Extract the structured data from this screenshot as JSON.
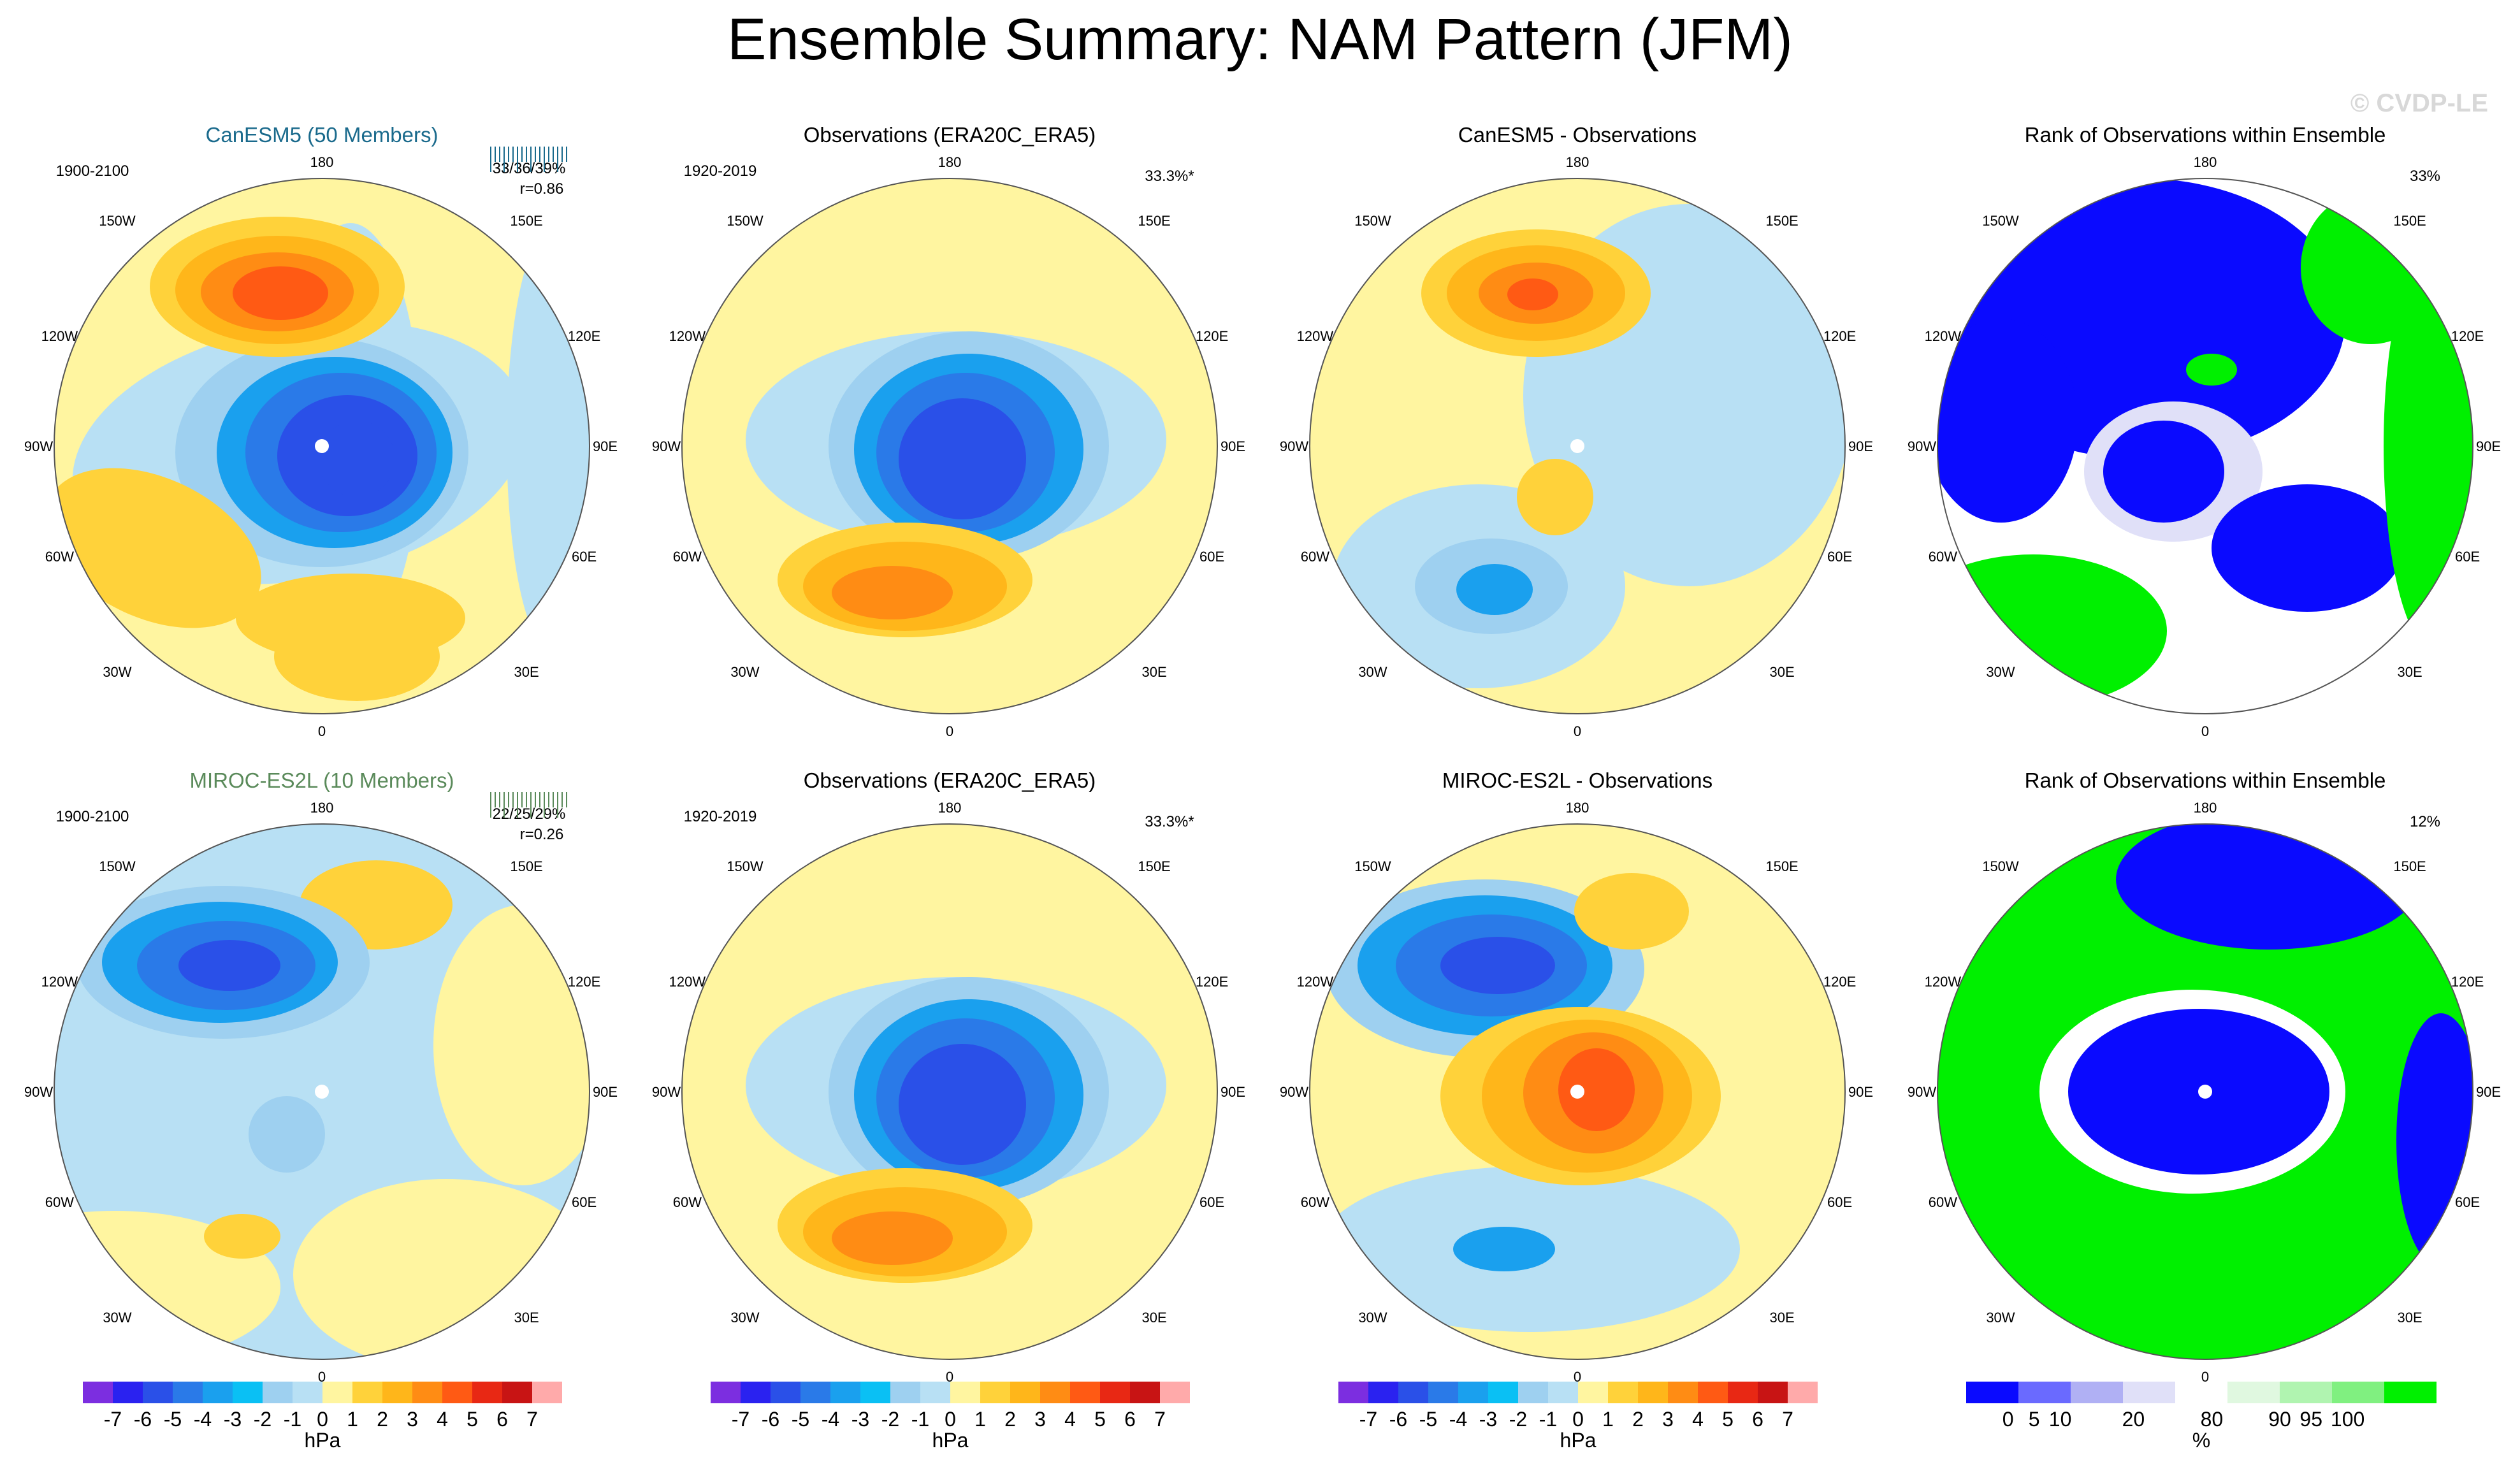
{
  "title": "Ensemble Summary: NAM Pattern (JFM)",
  "watermark": "© CVDP-LE",
  "colors": {
    "model1": "#1a6a8c",
    "model2": "#5a8a5a",
    "map_palette": [
      "#7c2ee0",
      "#2a22f0",
      "#2a50e8",
      "#2a7ae8",
      "#1aa0ee",
      "#0ac0f4",
      "#9ed0f0",
      "#b8e0f4",
      "#fff5a0",
      "#ffd23a",
      "#ffb61a",
      "#ff8c14",
      "#ff5a14",
      "#e82814",
      "#c81414",
      "#ffaaaa"
    ],
    "rank_palette": [
      "#0a0aff",
      "#6a6aff",
      "#b0b0f4",
      "#e0e0f8",
      "#ffffff",
      "#e0f8e0",
      "#b0f4b0",
      "#80f080",
      "#00f000"
    ]
  },
  "map_labels": {
    "lon_top": "180",
    "lon_bottom": "0",
    "nw1": "150W",
    "nw2": "120W",
    "w": "90W",
    "sw1": "60W",
    "sw2": "30W",
    "ne1": "150E",
    "ne2": "120E",
    "e": "90E",
    "se1": "60E",
    "se2": "30E"
  },
  "panels": [
    {
      "title": "CanESM5 (50 Members)",
      "period": "1900-2100",
      "stats1": "33/36/39%",
      "stats2": "r=0.86",
      "corner": ""
    },
    {
      "title": "Observations (ERA20C_ERA5)",
      "period": "1920-2019",
      "stats1": "",
      "stats2": "",
      "corner": "33.3%*"
    },
    {
      "title": "CanESM5 - Observations",
      "period": "",
      "stats1": "",
      "stats2": "",
      "corner": ""
    },
    {
      "title": "Rank of Observations within Ensemble",
      "period": "",
      "stats1": "",
      "stats2": "",
      "corner": "33%"
    },
    {
      "title": "MIROC-ES2L (10 Members)",
      "period": "1900-2100",
      "stats1": "22/25/29%",
      "stats2": "r=0.26",
      "corner": ""
    },
    {
      "title": "Observations (ERA20C_ERA5)",
      "period": "1920-2019",
      "stats1": "",
      "stats2": "",
      "corner": "33.3%*"
    },
    {
      "title": "MIROC-ES2L - Observations",
      "period": "",
      "stats1": "",
      "stats2": "",
      "corner": ""
    },
    {
      "title": "Rank of Observations within Ensemble",
      "period": "",
      "stats1": "",
      "stats2": "",
      "corner": "12%"
    }
  ],
  "colorbar_hpa": {
    "ticks": [
      "-7",
      "-6",
      "-5",
      "-4",
      "-3",
      "-2",
      "-1",
      "0",
      "1",
      "2",
      "3",
      "4",
      "5",
      "6",
      "7"
    ],
    "units": "hPa"
  },
  "colorbar_rank": {
    "ticks": [
      "0",
      "5",
      "10",
      "20",
      "80",
      "90",
      "95",
      "100"
    ],
    "units": "%"
  },
  "chart_data": [
    {
      "type": "heatmap",
      "title": "CanESM5 (50 Members)",
      "subtitle": "1900-2100",
      "units": "hPa",
      "projection": "north polar stereographic",
      "range": [
        -7,
        7
      ],
      "features": [
        {
          "region": "Arctic / polar cap",
          "min_hPa": -5
        },
        {
          "region": "North Pacific (near 150W-180)",
          "max_hPa": 6
        },
        {
          "region": "North Atlantic / Europe",
          "max_hPa": 3
        }
      ],
      "ensemble_spread": "33/36/39%",
      "pattern_correlation": 0.86
    },
    {
      "type": "heatmap",
      "title": "Observations (ERA20C_ERA5)",
      "subtitle": "1920-2019",
      "units": "hPa",
      "projection": "north polar stereographic",
      "range": [
        -7,
        7
      ],
      "features": [
        {
          "region": "Arctic / polar cap",
          "min_hPa": -6
        },
        {
          "region": "North Atlantic",
          "max_hPa": 4
        }
      ],
      "explained_variance": "33.3%*"
    },
    {
      "type": "heatmap",
      "title": "CanESM5 - Observations",
      "units": "hPa",
      "projection": "north polar stereographic",
      "range": [
        -7,
        7
      ],
      "features": [
        {
          "region": "North Pacific",
          "max_hPa": 5
        },
        {
          "region": "Atlantic",
          "min_hPa": -3
        }
      ]
    },
    {
      "type": "heatmap",
      "title": "Rank of Observations within Ensemble",
      "units": "%",
      "projection": "north polar stereographic",
      "range": [
        0,
        100
      ],
      "observed_outside_fraction": "33%"
    },
    {
      "type": "heatmap",
      "title": "MIROC-ES2L (10 Members)",
      "subtitle": "1900-2100",
      "units": "hPa",
      "projection": "north polar stereographic",
      "range": [
        -7,
        7
      ],
      "features": [
        {
          "region": "North Pacific",
          "min_hPa": -5
        },
        {
          "region": "Arctic",
          "min_hPa": -2
        }
      ],
      "ensemble_spread": "22/25/29%",
      "pattern_correlation": 0.26
    },
    {
      "type": "heatmap",
      "title": "Observations (ERA20C_ERA5)",
      "subtitle": "1920-2019",
      "units": "hPa",
      "projection": "north polar stereographic",
      "range": [
        -7,
        7
      ],
      "features": [
        {
          "region": "Arctic / polar cap",
          "min_hPa": -6
        },
        {
          "region": "North Atlantic",
          "max_hPa": 4
        }
      ],
      "explained_variance": "33.3%*"
    },
    {
      "type": "heatmap",
      "title": "MIROC-ES2L - Observations",
      "units": "hPa",
      "projection": "north polar stereographic",
      "range": [
        -7,
        7
      ],
      "features": [
        {
          "region": "Arctic",
          "max_hPa": 6
        },
        {
          "region": "North Pacific",
          "min_hPa": -5
        }
      ]
    },
    {
      "type": "heatmap",
      "title": "Rank of Observations within Ensemble",
      "units": "%",
      "projection": "north polar stereographic",
      "range": [
        0,
        100
      ],
      "observed_outside_fraction": "12%"
    }
  ]
}
